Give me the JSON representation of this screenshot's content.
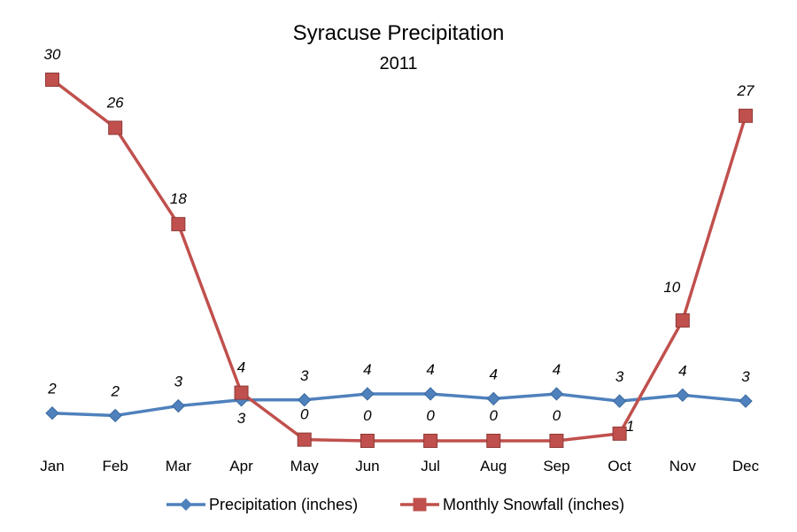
{
  "chart_data": {
    "type": "line",
    "title": "Syracuse Precipitation",
    "subtitle": "2011",
    "categories": [
      "Jan",
      "Feb",
      "Mar",
      "Apr",
      "May",
      "Jun",
      "Jul",
      "Aug",
      "Sep",
      "Oct",
      "Nov",
      "Dec"
    ],
    "series": [
      {
        "name": "Precipitation (inches)",
        "color": "#4F81BD",
        "marker": "diamond",
        "values": [
          2.3,
          2.1,
          2.9,
          3.4,
          3.4,
          3.9,
          3.9,
          3.5,
          3.9,
          3.3,
          3.8,
          3.3
        ],
        "labels": [
          "2",
          "2",
          "3",
          "3",
          "3",
          "4",
          "4",
          "4",
          "4",
          "3",
          "4",
          "3"
        ]
      },
      {
        "name": "Monthly Snowfall (inches)",
        "color": "#C0504D",
        "marker": "square",
        "values": [
          30,
          26,
          18,
          4,
          0.1,
          0,
          0,
          0,
          0,
          0.6,
          10,
          27
        ],
        "labels": [
          "30",
          "26",
          "18",
          "4",
          "0",
          "0",
          "0",
          "0",
          "0",
          "1",
          "10",
          "27"
        ]
      }
    ],
    "xlabel": "",
    "ylabel": "",
    "ylim": [
      0,
      32
    ],
    "grid": false,
    "legend_position": "bottom"
  }
}
